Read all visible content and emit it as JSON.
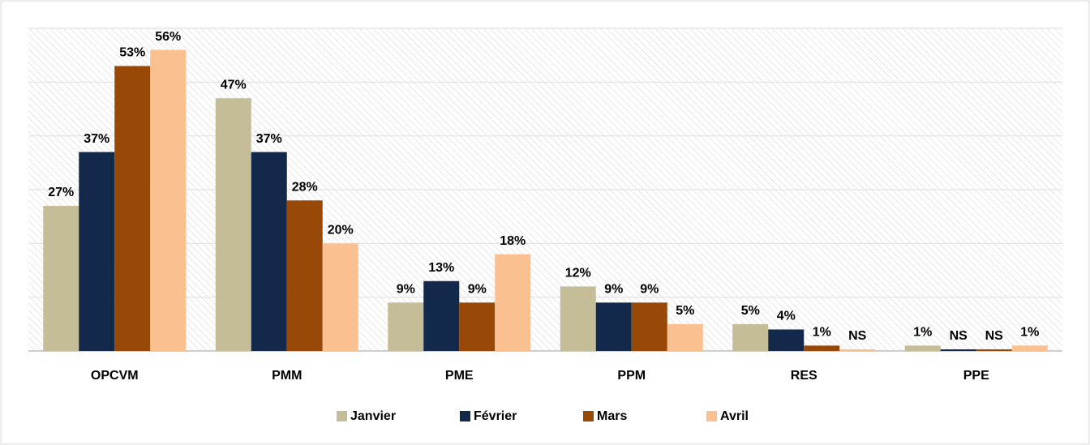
{
  "chart_data": {
    "type": "bar",
    "categories": [
      "OPCVM",
      "PMM",
      "PME",
      "PPM",
      "RES",
      "PPE"
    ],
    "series": [
      {
        "name": "Janvier",
        "color": "#c4bd97",
        "values": [
          27,
          47,
          9,
          12,
          5,
          1
        ],
        "value_labels": [
          "27%",
          "47%",
          "9%",
          "12%",
          "5%",
          "1%"
        ]
      },
      {
        "name": "Février",
        "color": "#13294b",
        "values": [
          37,
          37,
          13,
          9,
          4,
          0.3
        ],
        "value_labels": [
          "37%",
          "37%",
          "13%",
          "9%",
          "4%",
          "NS"
        ]
      },
      {
        "name": "Mars",
        "color": "#984807",
        "values": [
          53,
          28,
          9,
          9,
          1,
          0.3
        ],
        "value_labels": [
          "53%",
          "28%",
          "9%",
          "9%",
          "1%",
          "NS"
        ]
      },
      {
        "name": "Avril",
        "color": "#fac090",
        "values": [
          56,
          20,
          18,
          5,
          0.3,
          1
        ],
        "value_labels": [
          "56%",
          "20%",
          "18%",
          "5%",
          "NS",
          "1%"
        ]
      }
    ],
    "ylim": [
      0,
      60
    ],
    "yticks": [
      0,
      10,
      20,
      30,
      40,
      50,
      60
    ],
    "grid": true,
    "legend": "bottom"
  }
}
